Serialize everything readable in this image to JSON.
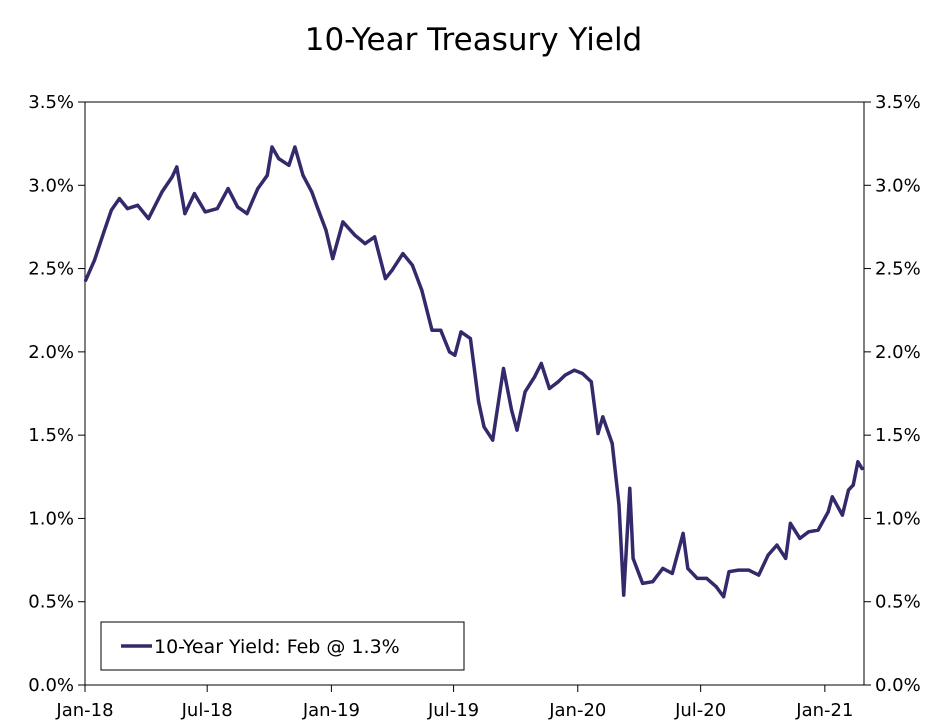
{
  "chart_data": {
    "type": "line",
    "title": "10-Year Treasury Yield",
    "xlabel": "",
    "ylabel": "",
    "x_tick_labels": [
      "Jan-18",
      "Jul-18",
      "Jan-19",
      "Jul-19",
      "Jan-20",
      "Jul-20",
      "Jan-21"
    ],
    "y_tick_labels": [
      "0.0%",
      "0.5%",
      "1.0%",
      "1.5%",
      "2.0%",
      "2.5%",
      "3.0%",
      "3.5%"
    ],
    "y_ticks": [
      0,
      0.5,
      1.0,
      1.5,
      2.0,
      2.5,
      3.0,
      3.5
    ],
    "ylim": [
      0,
      3.5
    ],
    "xlim": [
      "2018-01-01",
      "2021-02-28"
    ],
    "grid": false,
    "legend_position": "bottom-left",
    "series": [
      {
        "name": "10-Year Yield: Feb @ 1.3%",
        "color": "#332a6b",
        "x": [
          "2018-01-02",
          "2018-01-15",
          "2018-01-29",
          "2018-02-09",
          "2018-02-21",
          "2018-03-05",
          "2018-03-20",
          "2018-04-05",
          "2018-04-25",
          "2018-05-10",
          "2018-05-17",
          "2018-05-29",
          "2018-06-12",
          "2018-06-28",
          "2018-07-16",
          "2018-08-01",
          "2018-08-15",
          "2018-08-29",
          "2018-09-14",
          "2018-09-28",
          "2018-10-05",
          "2018-10-15",
          "2018-10-30",
          "2018-11-08",
          "2018-11-20",
          "2018-12-03",
          "2018-12-11",
          "2018-12-24",
          "2019-01-03",
          "2019-01-18",
          "2019-02-05",
          "2019-02-20",
          "2019-03-06",
          "2019-03-22",
          "2019-04-01",
          "2019-04-17",
          "2019-05-01",
          "2019-05-15",
          "2019-05-30",
          "2019-06-12",
          "2019-06-25",
          "2019-07-03",
          "2019-07-12",
          "2019-07-26",
          "2019-08-07",
          "2019-08-15",
          "2019-08-28",
          "2019-09-13",
          "2019-09-25",
          "2019-10-03",
          "2019-10-15",
          "2019-10-29",
          "2019-11-08",
          "2019-11-20",
          "2019-12-03",
          "2019-12-13",
          "2019-12-27",
          "2020-01-08",
          "2020-01-21",
          "2020-01-31",
          "2020-02-07",
          "2020-02-21",
          "2020-03-02",
          "2020-03-09",
          "2020-03-18",
          "2020-03-23",
          "2020-04-06",
          "2020-04-21",
          "2020-05-06",
          "2020-05-20",
          "2020-06-05",
          "2020-06-12",
          "2020-06-26",
          "2020-07-10",
          "2020-07-24",
          "2020-08-04",
          "2020-08-12",
          "2020-08-26",
          "2020-09-10",
          "2020-09-25",
          "2020-10-09",
          "2020-10-22",
          "2020-11-04",
          "2020-11-11",
          "2020-11-25",
          "2020-12-08",
          "2020-12-22",
          "2021-01-06",
          "2021-01-12",
          "2021-01-27",
          "2021-02-05",
          "2021-02-12",
          "2021-02-19",
          "2021-02-25"
        ],
        "values": [
          2.43,
          2.55,
          2.72,
          2.85,
          2.92,
          2.86,
          2.88,
          2.8,
          2.96,
          3.05,
          3.11,
          2.83,
          2.95,
          2.84,
          2.86,
          2.98,
          2.87,
          2.83,
          2.98,
          3.06,
          3.23,
          3.16,
          3.12,
          3.23,
          3.06,
          2.96,
          2.87,
          2.73,
          2.56,
          2.78,
          2.7,
          2.65,
          2.69,
          2.44,
          2.49,
          2.59,
          2.52,
          2.37,
          2.13,
          2.13,
          2.0,
          1.98,
          2.12,
          2.08,
          1.7,
          1.55,
          1.47,
          1.9,
          1.65,
          1.53,
          1.76,
          1.85,
          1.93,
          1.78,
          1.82,
          1.86,
          1.89,
          1.87,
          1.82,
          1.51,
          1.61,
          1.45,
          1.08,
          0.54,
          1.18,
          0.76,
          0.61,
          0.62,
          0.7,
          0.67,
          0.91,
          0.7,
          0.64,
          0.64,
          0.59,
          0.53,
          0.68,
          0.69,
          0.69,
          0.66,
          0.78,
          0.84,
          0.76,
          0.97,
          0.88,
          0.92,
          0.93,
          1.04,
          1.13,
          1.02,
          1.17,
          1.2,
          1.34,
          1.3
        ]
      }
    ]
  }
}
